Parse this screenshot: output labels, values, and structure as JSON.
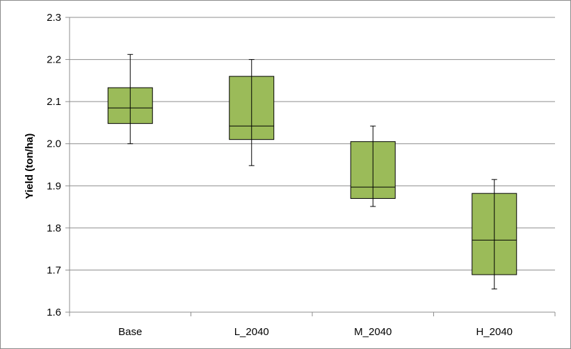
{
  "chart_data": {
    "type": "box",
    "title": "",
    "xlabel": "",
    "ylabel": "Yield (ton/ha)",
    "ylim": [
      1.6,
      2.3
    ],
    "yticks": [
      "1.6",
      "1.7",
      "1.8",
      "1.9",
      "2.0",
      "2.1",
      "2.2",
      "2.3"
    ],
    "grid": true,
    "legend": "none",
    "categories": [
      "Base",
      "L_2040",
      "M_2040",
      "H_2040"
    ],
    "boxes": [
      {
        "category": "Base",
        "min": 2.0,
        "q1": 2.048,
        "median": 2.085,
        "q3": 2.133,
        "max": 2.212
      },
      {
        "category": "L_2040",
        "min": 1.948,
        "q1": 2.01,
        "median": 2.042,
        "q3": 2.16,
        "max": 2.2
      },
      {
        "category": "M_2040",
        "min": 1.851,
        "q1": 1.87,
        "median": 1.897,
        "q3": 2.005,
        "max": 2.042
      },
      {
        "category": "H_2040",
        "min": 1.655,
        "q1": 1.689,
        "median": 1.771,
        "q3": 1.882,
        "max": 1.915
      }
    ],
    "colors": {
      "box_fill": "#9BBB59",
      "box_stroke": "#000000",
      "grid": "#8C8C8C",
      "axis": "#8C8C8C"
    }
  }
}
